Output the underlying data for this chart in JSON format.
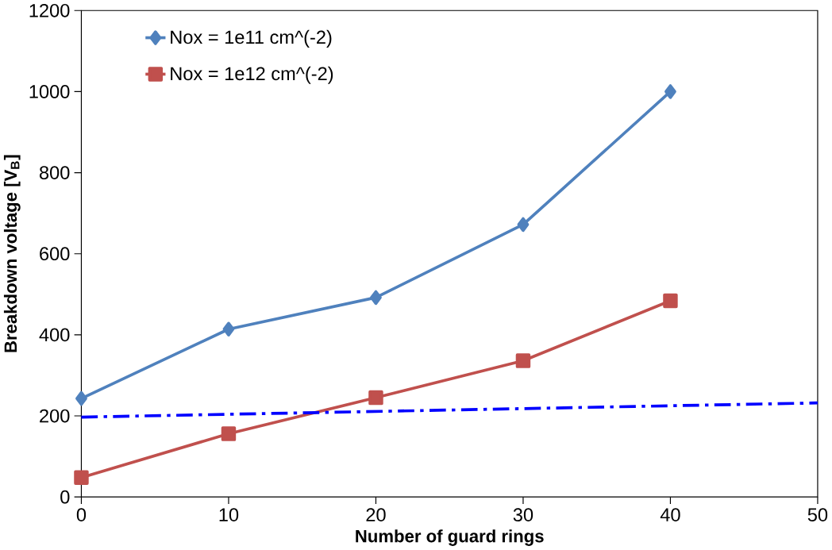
{
  "chart_data": {
    "type": "line",
    "xlabel": "Number of guard rings",
    "ylabel": "Breakdown voltage [V$_{B}$]",
    "x": [
      0,
      10,
      20,
      30,
      40
    ],
    "series": [
      {
        "name": "Nox = 1e11 cm^(-2)",
        "color": "#4f81bd",
        "marker": "diamond",
        "values": [
          243,
          414,
          492,
          672,
          1000
        ]
      },
      {
        "name": "Nox = 1e12 cm^(-2)",
        "color": "#c0504d",
        "marker": "square",
        "values": [
          48,
          156,
          245,
          336,
          484
        ]
      },
      {
        "color": "#0000ff",
        "x": [
          0,
          50
        ],
        "values": [
          197,
          232
        ],
        "line_style": "dashed",
        "marker": "none"
      }
    ],
    "xlim": [
      0,
      50
    ],
    "xticks": [
      0,
      10,
      20,
      30,
      40,
      50
    ],
    "ylim": [
      0,
      1200
    ],
    "yticks": [
      0,
      200,
      400,
      600,
      800,
      1000,
      1200
    ],
    "grid": false,
    "legend": "top left"
  }
}
